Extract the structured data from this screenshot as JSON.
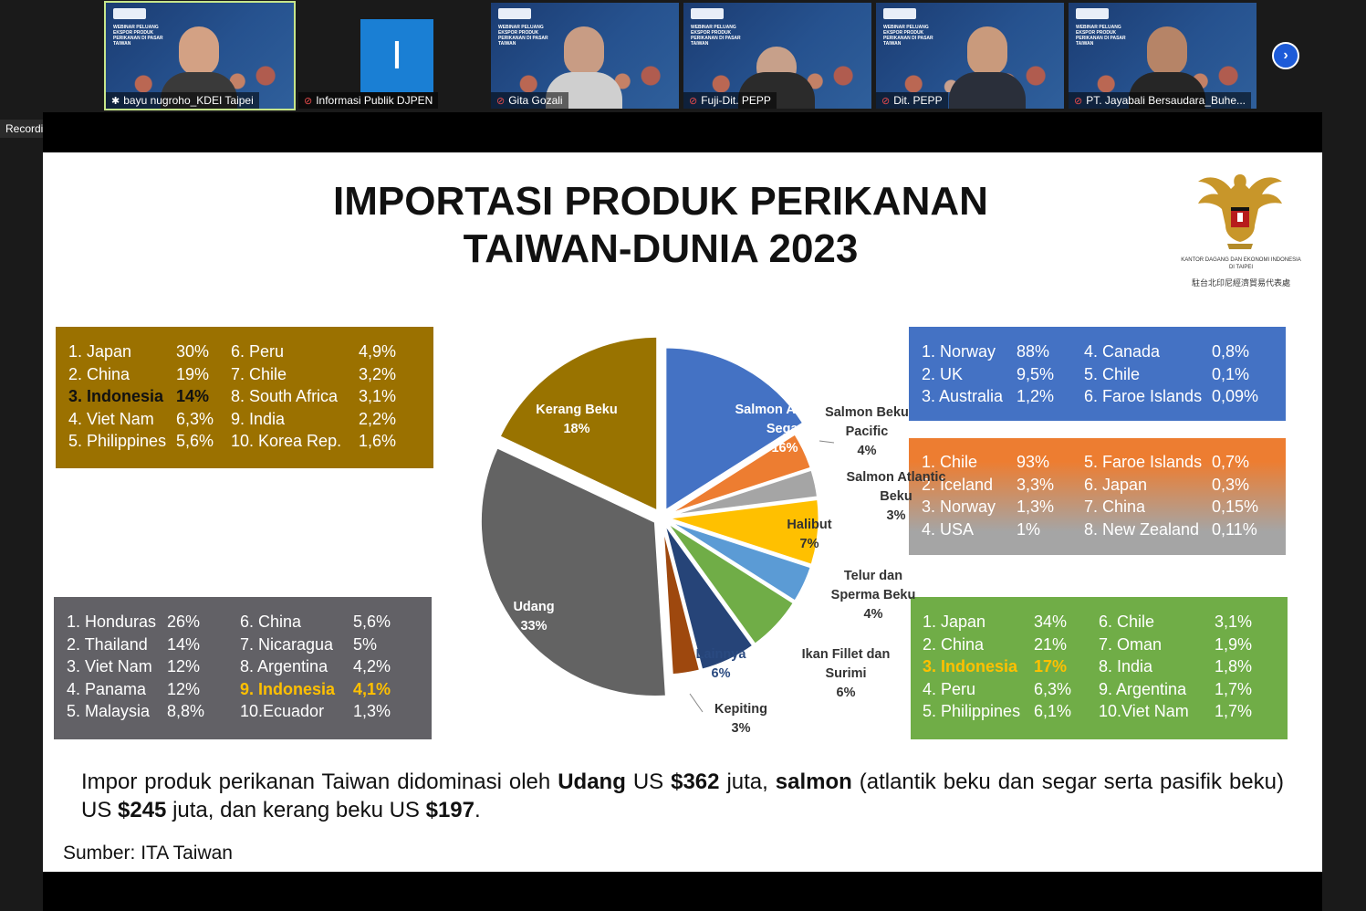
{
  "participants": [
    {
      "name": "bayu nugroho_KDEI Taipei",
      "mic": "unmuted-pin"
    },
    {
      "name": "Informasi Publik DJPEN",
      "mic": "muted",
      "initial": "I"
    },
    {
      "name": "Gita Gozali",
      "mic": "muted"
    },
    {
      "name": "Fuji-Dit. PEPP",
      "mic": "muted"
    },
    {
      "name": "Dit. PEPP",
      "mic": "muted"
    },
    {
      "name": "PT. Jayabali Bersaudara_Buhe...",
      "mic": "muted"
    }
  ],
  "tile_title_lines": "WEBINAR PELUANG EKSPOR PRODUK PERIKANAN DI PASAR TAIWAN",
  "next_icon": "chevron-right-icon",
  "recording_label": "Recording",
  "slide": {
    "title_line1": "IMPORTASI PRODUK PERIKANAN",
    "title_line2": "TAIWAN-DUNIA 2023",
    "kdei_line1": "KANTOR DAGANG DAN EKONOMI INDONESIA",
    "kdei_line2": "DI TAIPEI",
    "kdei_line3": "駐台北印尼經濟貿易代表處",
    "summary_parts": [
      "Impor produk perikanan Taiwan didominasi oleh ",
      "Udang",
      " US ",
      "$362",
      " juta, ",
      "salmon",
      " (atlantik beku dan segar serta pasifik beku) US ",
      "$245",
      " juta, dan kerang beku US ",
      "$197",
      "."
    ],
    "source": "Sumber: ITA Taiwan"
  },
  "boxes": {
    "kerang": {
      "color": "#9b7100",
      "left": [
        [
          "1. Japan",
          "30%"
        ],
        [
          "2. China",
          "19%"
        ],
        [
          "3. Indonesia",
          "14%"
        ],
        [
          "4. Viet Nam",
          "6,3%"
        ],
        [
          "5. Philippines",
          "5,6%"
        ]
      ],
      "right": [
        [
          "6. Peru",
          "4,9%"
        ],
        [
          "7. Chile",
          "3,2%"
        ],
        [
          "8. South Africa",
          "3,1%"
        ],
        [
          "9. India",
          "2,2%"
        ],
        [
          "10. Korea Rep.",
          "1,6%"
        ]
      ]
    },
    "salmon_segar": {
      "color": "#4472c4",
      "left": [
        [
          "1. Norway",
          "88%"
        ],
        [
          "2. UK",
          "9,5%"
        ],
        [
          "3. Australia",
          "1,2%"
        ]
      ],
      "right": [
        [
          "4.     Canada",
          "0,8%"
        ],
        [
          "5. Chile",
          "0,1%"
        ],
        [
          "6. Faroe Islands",
          "0,09%"
        ]
      ]
    },
    "salmon_beku": {
      "color_top": "#ed7d31",
      "color_bottom": "#a5a5a5",
      "left": [
        [
          "1. Chile",
          "93%"
        ],
        [
          "2. Iceland",
          "3,3%"
        ],
        [
          "3. Norway",
          "1,3%"
        ],
        [
          "4. USA",
          "1%"
        ]
      ],
      "right": [
        [
          "5. Faroe Islands",
          "0,7%"
        ],
        [
          "6. Japan",
          "0,3%"
        ],
        [
          "7. China",
          "0,15%"
        ],
        [
          "8. New Zealand",
          "0,11%"
        ]
      ]
    },
    "udang": {
      "color": "#626166",
      "left": [
        [
          "1. Honduras",
          "26%"
        ],
        [
          "2. Thailand",
          "14%"
        ],
        [
          "3. Viet Nam",
          "12%"
        ],
        [
          "4. Panama",
          "12%"
        ],
        [
          "5. Malaysia",
          "8,8%"
        ]
      ],
      "right": [
        [
          "6. China",
          "5,6%"
        ],
        [
          "7. Nicaragua",
          "5%"
        ],
        [
          "8. Argentina",
          "4,2%"
        ],
        [
          "9. Indonesia",
          "4,1%"
        ],
        [
          "10.Ecuador",
          "1,3%"
        ]
      ]
    },
    "ikan_fillet": {
      "color": "#70ad47",
      "left": [
        [
          "1. Japan",
          "34%"
        ],
        [
          "2. China",
          "21%"
        ],
        [
          "3. Indonesia",
          "17%"
        ],
        [
          "4. Peru",
          "6,3%"
        ],
        [
          "5. Philippines",
          "6,1%"
        ]
      ],
      "right": [
        [
          "6. Chile",
          "3,1%"
        ],
        [
          "7. Oman",
          "1,9%"
        ],
        [
          "8. India",
          "1,8%"
        ],
        [
          "9. Argentina",
          "1,7%"
        ],
        [
          "10.Viet Nam",
          "1,7%"
        ]
      ]
    }
  },
  "chart_data": {
    "type": "pie",
    "title": "IMPORTASI PRODUK PERIKANAN TAIWAN-DUNIA 2023",
    "slices": [
      {
        "label": "Salmon Atlantic Segar",
        "value": 16,
        "color": "#4472c4"
      },
      {
        "label": "Salmon Beku Pacific",
        "value": 4,
        "color": "#ed7d31"
      },
      {
        "label": "Salmon Atlantic Beku",
        "value": 3,
        "color": "#a5a5a5"
      },
      {
        "label": "Halibut",
        "value": 7,
        "color": "#ffc000"
      },
      {
        "label": "Telur dan Sperma Beku",
        "value": 4,
        "color": "#5b9bd5"
      },
      {
        "label": "Ikan Fillet dan Surimi",
        "value": 6,
        "color": "#70ad47"
      },
      {
        "label": "Lainnya",
        "value": 6,
        "color": "#264478"
      },
      {
        "label": "Kepiting",
        "value": 3,
        "color": "#9e480e"
      },
      {
        "label": "Udang",
        "value": 33,
        "color": "#636363"
      },
      {
        "label": "Kerang Beku",
        "value": 18,
        "color": "#997300"
      }
    ]
  }
}
